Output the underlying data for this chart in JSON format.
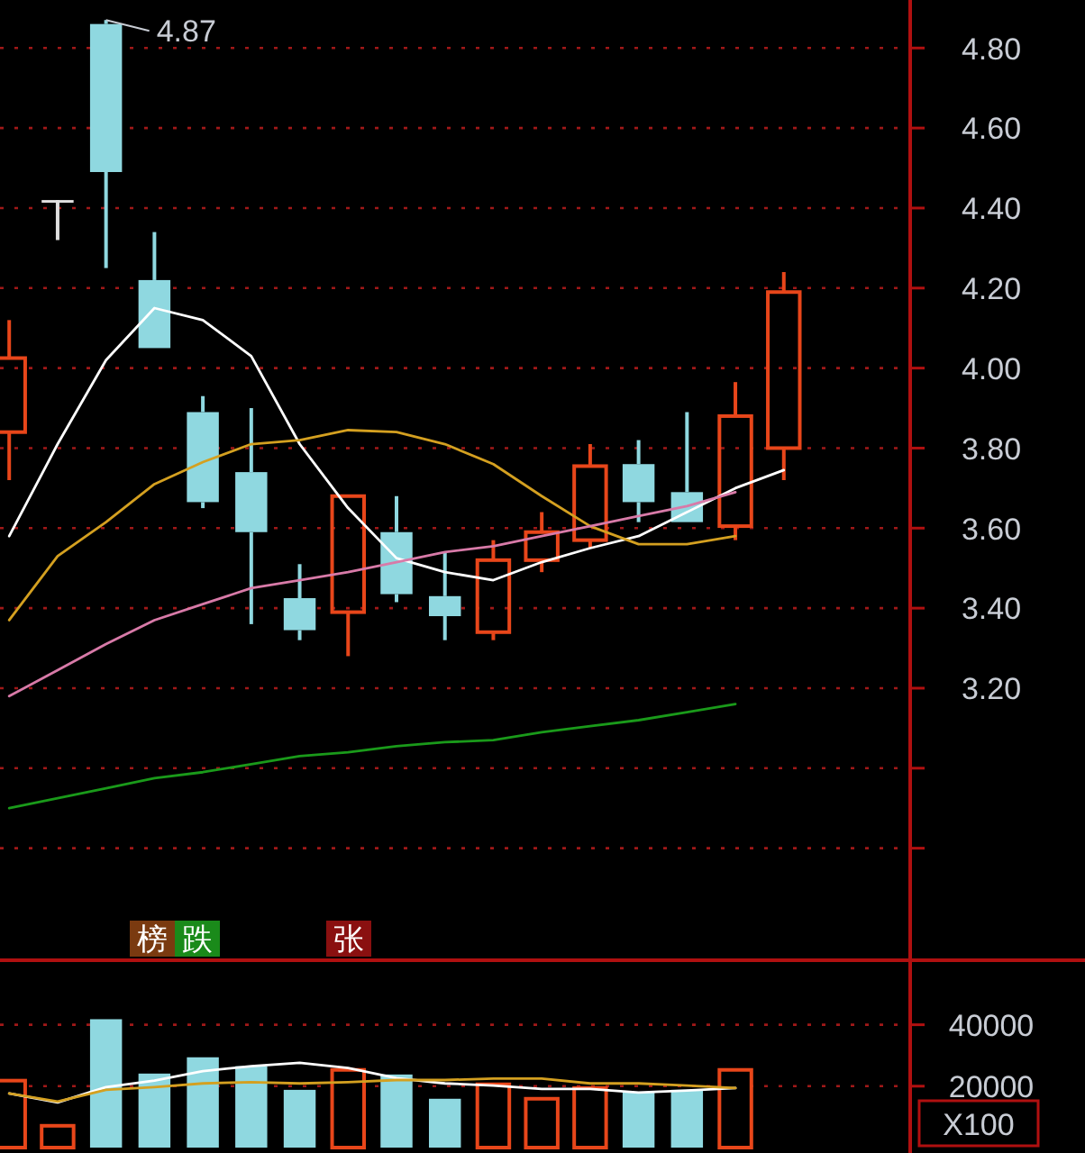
{
  "chart_data": [
    {
      "type": "candlestick",
      "categories": [
        null,
        null,
        null,
        null,
        null,
        null,
        null,
        null,
        null,
        null,
        null,
        null,
        null,
        null,
        null,
        null,
        null
      ],
      "ohlc": [
        [
          3.84,
          4.12,
          3.72,
          4.025
        ],
        [
          4.42,
          4.42,
          4.32,
          4.42
        ],
        [
          4.86,
          4.87,
          4.25,
          4.49
        ],
        [
          4.22,
          4.34,
          4.05,
          4.05
        ],
        [
          3.89,
          3.93,
          3.65,
          3.665
        ],
        [
          3.74,
          3.9,
          3.36,
          3.59
        ],
        [
          3.425,
          3.51,
          3.32,
          3.345
        ],
        [
          3.39,
          3.68,
          3.28,
          3.68
        ],
        [
          3.59,
          3.68,
          3.415,
          3.435
        ],
        [
          3.43,
          3.54,
          3.32,
          3.38
        ],
        [
          3.34,
          3.57,
          3.32,
          3.52
        ],
        [
          3.52,
          3.64,
          3.49,
          3.59
        ],
        [
          3.57,
          3.81,
          3.55,
          3.755
        ],
        [
          3.76,
          3.82,
          3.615,
          3.665
        ],
        [
          3.69,
          3.89,
          3.615,
          3.615
        ],
        [
          3.605,
          3.965,
          3.57,
          3.88
        ],
        [
          3.8,
          4.24,
          3.72,
          4.19
        ]
      ],
      "colors": [
        "#e8461a",
        "#e0e0e0",
        "#8fd8e0",
        "#8fd8e0",
        "#8fd8e0",
        "#8fd8e0",
        "#8fd8e0",
        "#e8461a",
        "#8fd8e0",
        "#8fd8e0",
        "#e8461a",
        "#e8461a",
        "#e8461a",
        "#8fd8e0",
        "#8fd8e0",
        "#e8461a",
        "#e8461a"
      ],
      "series": [
        {
          "type": "line",
          "color": "#ffffff",
          "values": [
            3.58,
            3.81,
            4.02,
            4.15,
            4.12,
            4.03,
            3.81,
            3.65,
            3.525,
            3.49,
            3.47,
            3.515,
            3.55,
            3.58,
            3.64,
            3.7,
            3.745
          ]
        },
        {
          "type": "line",
          "color": "#d4a020",
          "values": [
            3.37,
            3.53,
            3.615,
            3.71,
            3.765,
            3.81,
            3.82,
            3.845,
            3.84,
            3.81,
            3.76,
            3.68,
            3.605,
            3.56,
            3.56,
            3.58,
            null
          ]
        },
        {
          "type": "line",
          "color": "#d87aa8",
          "values": [
            3.18,
            3.245,
            3.31,
            3.37,
            3.41,
            3.45,
            3.47,
            3.49,
            3.515,
            3.54,
            3.555,
            3.58,
            3.605,
            3.63,
            3.655,
            3.69,
            null
          ]
        },
        {
          "type": "line",
          "color": "#1a9a1a",
          "values": [
            2.9,
            2.925,
            2.95,
            2.975,
            2.99,
            3.01,
            3.03,
            3.04,
            3.055,
            3.065,
            3.07,
            3.09,
            3.105,
            3.12,
            3.14,
            3.16,
            null
          ]
        }
      ],
      "ylim": [
        2.52,
        4.92
      ],
      "yticks": [
        {
          "value": 2.8,
          "label": null
        },
        {
          "value": 3.0,
          "label": null
        },
        {
          "value": 3.2,
          "label": "3.20"
        },
        {
          "value": 3.4,
          "label": "3.40"
        },
        {
          "value": 3.6,
          "label": "3.60"
        },
        {
          "value": 3.8,
          "label": "3.80"
        },
        {
          "value": 4.0,
          "label": "4.00"
        },
        {
          "value": 4.2,
          "label": "4.20"
        },
        {
          "value": 4.4,
          "label": "4.40"
        },
        {
          "value": 4.6,
          "label": "4.60"
        },
        {
          "value": 4.8,
          "label": "4.80"
        }
      ],
      "grid": "y",
      "tick_labels": "y",
      "annotations": [
        "4.87",
        "榜",
        "跌",
        "张"
      ]
    },
    {
      "type": "bar",
      "categories": [
        null,
        null,
        null,
        null,
        null,
        null,
        null,
        null,
        null,
        null,
        null,
        null,
        null,
        null,
        null,
        null,
        null
      ],
      "series": [
        {
          "type": "bar",
          "values": [
            21800,
            7100,
            41800,
            24100,
            29400,
            26500,
            18800,
            25300,
            23800,
            15900,
            20600,
            15900,
            19400,
            17900,
            18800,
            25300,
            null
          ],
          "colors": [
            "#e8461a",
            "#e8461a",
            "#8fd8e0",
            "#8fd8e0",
            "#8fd8e0",
            "#8fd8e0",
            "#8fd8e0",
            "#e8461a",
            "#8fd8e0",
            "#8fd8e0",
            "#e8461a",
            "#e8461a",
            "#e8461a",
            "#8fd8e0",
            "#8fd8e0",
            "#e8461a",
            null
          ]
        },
        {
          "type": "line",
          "color": "#ffffff",
          "values": [
            17600,
            14700,
            19700,
            21800,
            24900,
            26500,
            27600,
            25900,
            22600,
            20900,
            20200,
            19100,
            19100,
            17900,
            18600,
            19400,
            null
          ]
        },
        {
          "type": "line",
          "color": "#d4a020",
          "values": [
            17600,
            15000,
            18800,
            19700,
            20900,
            21300,
            20900,
            21300,
            22000,
            22000,
            22500,
            22500,
            20900,
            20900,
            20200,
            19400,
            null
          ]
        }
      ],
      "ylim": [
        0,
        61000
      ],
      "yticks": [
        20000,
        40000
      ],
      "grid": "y",
      "tick_labels": "y",
      "annotations": [
        "X100"
      ]
    }
  ]
}
